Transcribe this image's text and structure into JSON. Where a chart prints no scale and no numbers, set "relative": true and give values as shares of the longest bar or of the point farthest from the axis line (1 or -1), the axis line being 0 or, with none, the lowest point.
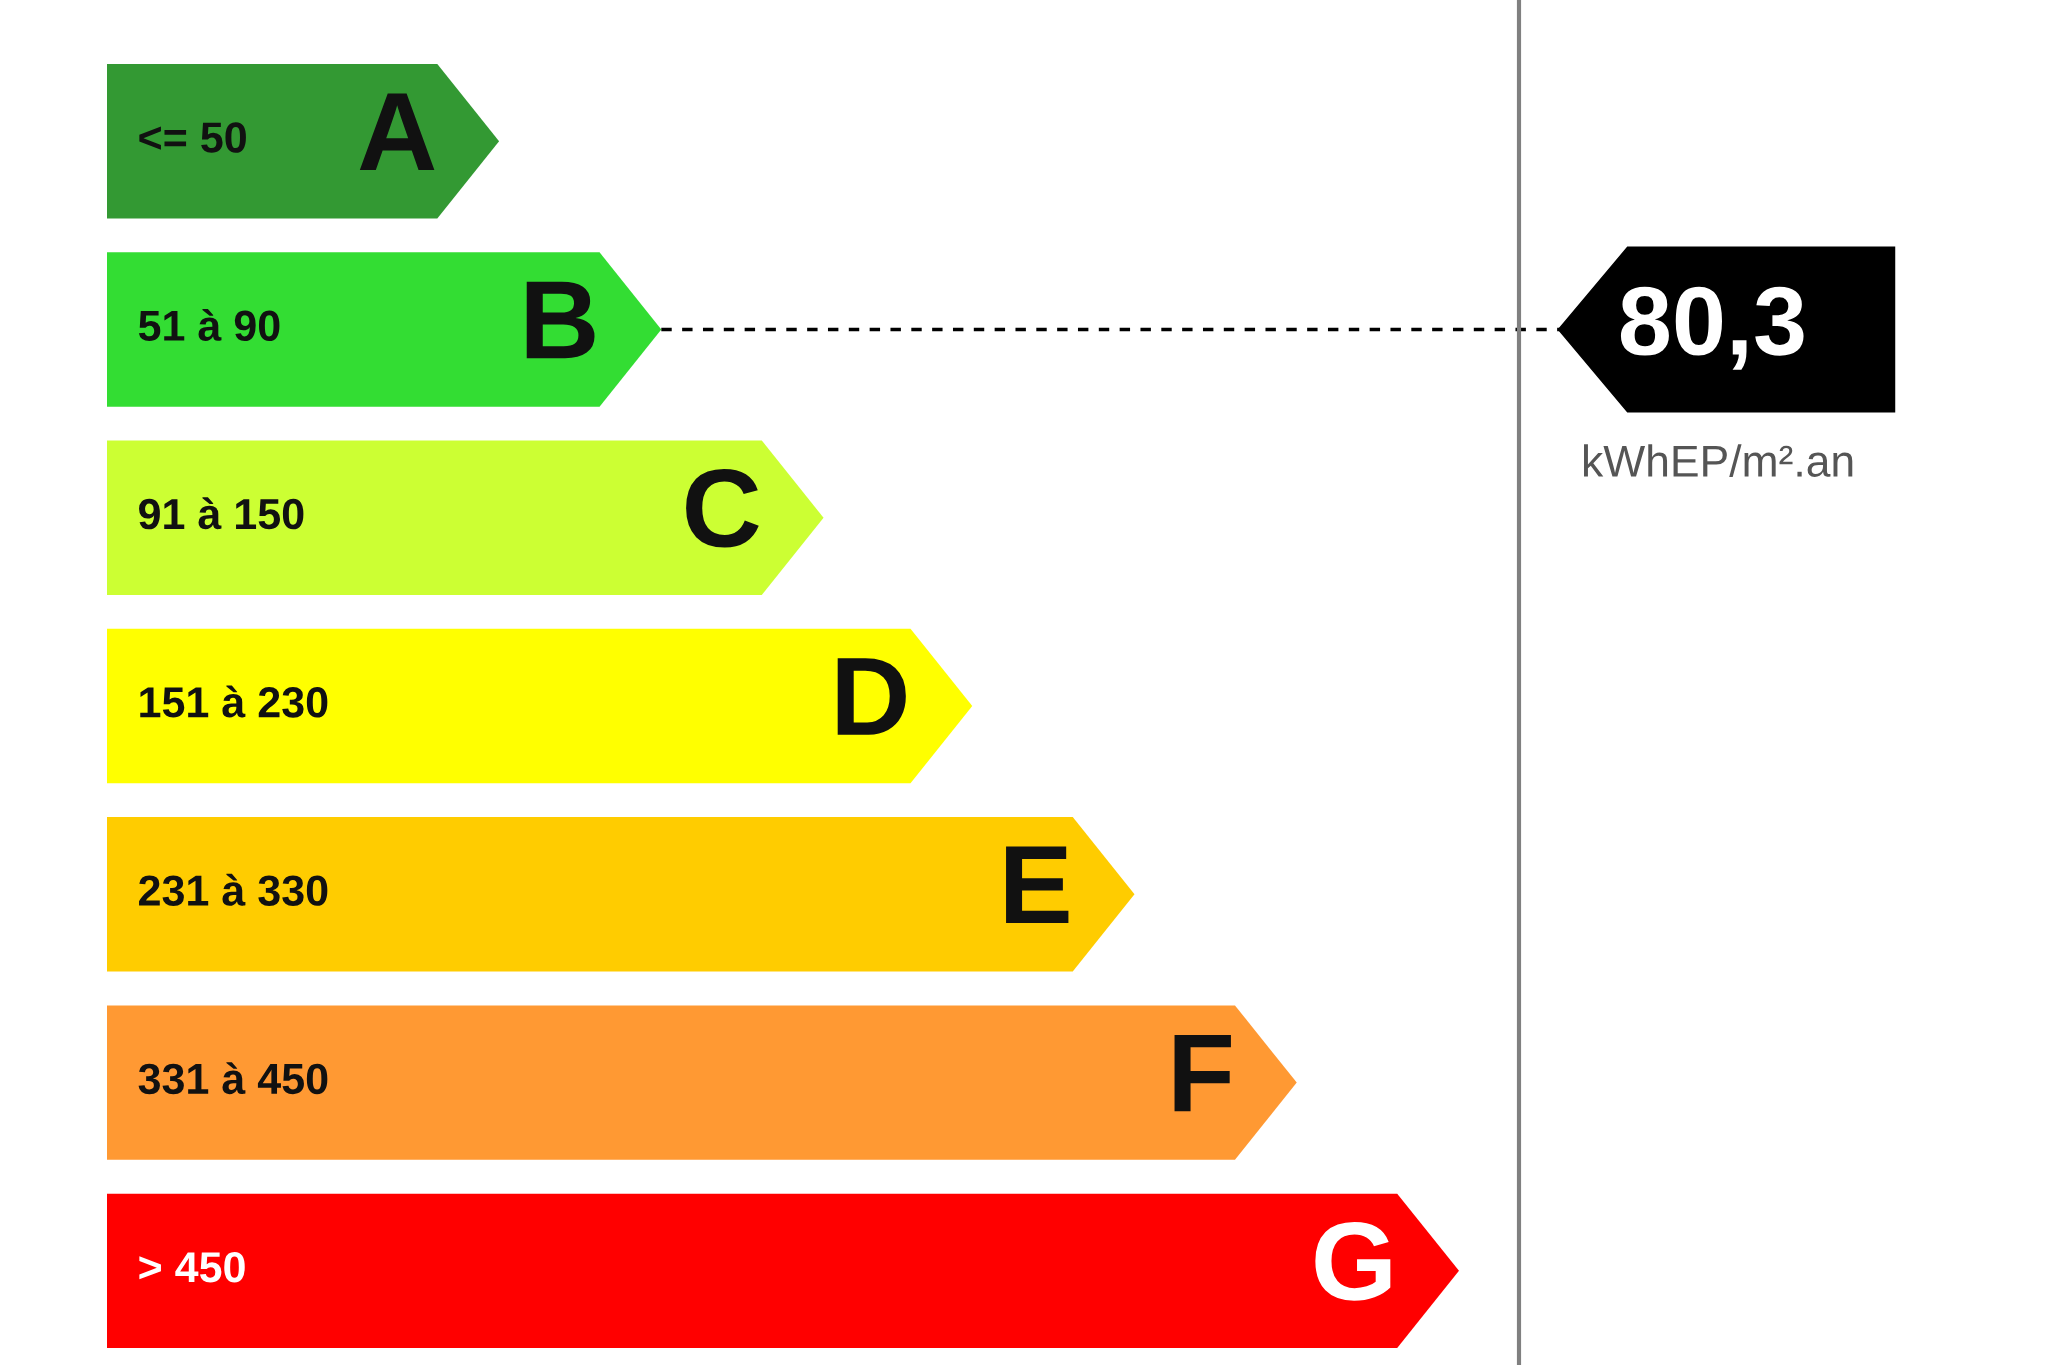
{
  "chart_data": {
    "type": "bar",
    "orientation": "horizontal",
    "relative": true,
    "tick_labels": false,
    "categories": [
      "A",
      "B",
      "C",
      "D",
      "E",
      "F",
      "G"
    ],
    "values": [
      0.29,
      0.41,
      0.53,
      0.64,
      0.76,
      0.88,
      1
    ],
    "colors": [
      "#339933",
      "#33dd33",
      "#ccff33",
      "#ffff00",
      "#ffcc00",
      "#ff9933",
      "#ff0000"
    ],
    "ref_lines": [
      {
        "axis": "y",
        "value": "B",
        "label": "80,3",
        "line_style": "dashed",
        "color": "#000000"
      }
    ],
    "annotations": [
      "<= 50",
      "51 à 90",
      "91 à 150",
      "151 à 230",
      "231 à 330",
      "331 à 450",
      "> 450",
      "kWhEP/m².an"
    ]
  }
}
